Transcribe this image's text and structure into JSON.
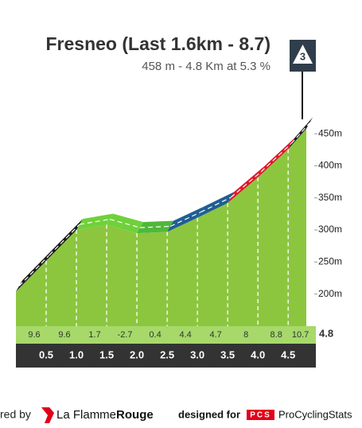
{
  "chart_data": {
    "type": "area",
    "title": "Fresneo (Last 1.6km - 8.7)",
    "subtitle": "458 m - 4.8 Km at 5.3 %",
    "category": "3",
    "x": [
      0,
      0.5,
      1.0,
      1.5,
      2.0,
      2.5,
      3.0,
      3.5,
      4.0,
      4.5,
      4.8
    ],
    "values": [
      204,
      252,
      300,
      308,
      295,
      297,
      319,
      342,
      382,
      426,
      458
    ],
    "color": "#8cc63f",
    "gradients": [
      9.6,
      9.6,
      1.7,
      -2.7,
      0.4,
      4.4,
      4.7,
      8.0,
      8.8,
      10.7
    ],
    "gradient_colors": [
      "#1a1a1a",
      "#1a1a1a",
      "#6fd13a",
      "#6fd13a",
      "#4fb83a",
      "#1f5f93",
      "#1f5f93",
      "#e2182b",
      "#e2182b",
      "#1a1a1a"
    ],
    "xlim": [
      0,
      4.8
    ],
    "xticks": [
      {
        "value": 0.5,
        "label": "0.5"
      },
      {
        "value": 1.0,
        "label": "1.0"
      },
      {
        "value": 1.5,
        "label": "1.5"
      },
      {
        "value": 2.0,
        "label": "2.0"
      },
      {
        "value": 2.5,
        "label": "2.5"
      },
      {
        "value": 3.0,
        "label": "3.0"
      },
      {
        "value": 3.5,
        "label": "3.5"
      },
      {
        "value": 4.0,
        "label": "4.0"
      },
      {
        "value": 4.5,
        "label": "4.5"
      },
      {
        "value": 4.8,
        "label": "4.8"
      }
    ],
    "ylim": [
      150,
      470
    ],
    "yticks": [
      {
        "value": 200,
        "label": "200m"
      },
      {
        "value": 250,
        "label": "250m"
      },
      {
        "value": 300,
        "label": "300m"
      },
      {
        "value": 350,
        "label": "350m"
      },
      {
        "value": 400,
        "label": "400m"
      },
      {
        "value": 450,
        "label": "450m"
      }
    ]
  },
  "footer": {
    "credit": "red by",
    "brand_a": "La Flamme",
    "brand_b": "Rouge",
    "designed": "designed for",
    "pcs": "PCS",
    "pcs_name": "ProCyclingStats"
  }
}
